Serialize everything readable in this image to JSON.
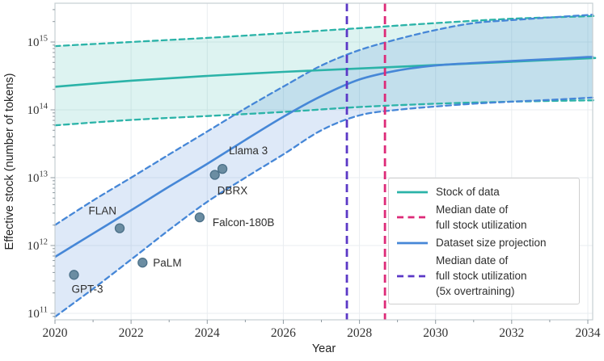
{
  "chart_data": {
    "type": "line",
    "title": "",
    "x_axis": {
      "label": "Year",
      "min": 2020,
      "max": 2034.13,
      "major_ticks": [
        2020,
        2022,
        2024,
        2026,
        2028,
        2030,
        2032,
        2034
      ],
      "minor_ticks": [
        2021,
        2023,
        2025,
        2027,
        2029,
        2031,
        2033
      ]
    },
    "y_axis": {
      "label": "Effective stock (number of tokens)",
      "scale": "log",
      "tick_base": "10",
      "tick_exponents": [
        11,
        12,
        13,
        14,
        15
      ],
      "min": 80000000000.0,
      "max": 3700000000000000.0
    },
    "grid": "major",
    "colors": {
      "teal": "#2bb3a8",
      "blue": "#4687d7",
      "pink": "#dd2a78",
      "purple": "#5b38c6",
      "teal_fill": "rgba(43,179,168,0.16)",
      "blue_fill": "rgba(91,144,220,0.20)",
      "point_fill": "#6b8da2",
      "point_edge": "#4b7088"
    },
    "series": [
      {
        "id": "stock_median",
        "name": "Stock of data",
        "style": "solid",
        "color_key": "teal",
        "points": [
          [
            2020,
            219000000000000.0
          ],
          [
            2022,
            269000000000000.0
          ],
          [
            2024,
            316000000000000.0
          ],
          [
            2026,
            363000000000000.0
          ],
          [
            2028,
            407000000000000.0
          ],
          [
            2030,
            457000000000000.0
          ],
          [
            2032,
            513000000000000.0
          ],
          [
            2034,
            575000000000000.0
          ]
        ]
      },
      {
        "id": "stock_upper",
        "name": "Stock of data (CI upper)",
        "style": "dashed",
        "color_key": "teal",
        "points": [
          [
            2020,
            870000000000000.0
          ],
          [
            2022,
            1000000000000000.0
          ],
          [
            2024,
            1150000000000000.0
          ],
          [
            2026,
            1350000000000000.0
          ],
          [
            2028,
            1600000000000000.0
          ],
          [
            2030,
            1900000000000000.0
          ],
          [
            2032,
            2200000000000000.0
          ],
          [
            2034,
            2400000000000000.0
          ]
        ]
      },
      {
        "id": "stock_lower",
        "name": "Stock of data (CI lower)",
        "style": "dashed",
        "color_key": "teal",
        "points": [
          [
            2020,
            59000000000000.0
          ],
          [
            2022,
            71000000000000.0
          ],
          [
            2024,
            81000000000000.0
          ],
          [
            2026,
            93000000000000.0
          ],
          [
            2028,
            110000000000000.0
          ],
          [
            2030,
            123000000000000.0
          ],
          [
            2032,
            132000000000000.0
          ],
          [
            2034,
            138000000000000.0
          ]
        ]
      },
      {
        "id": "dataset_median",
        "name": "Dataset size projection",
        "style": "solid",
        "color_key": "blue",
        "points": [
          [
            2020,
            680000000000.0
          ],
          [
            2021,
            1500000000000.0
          ],
          [
            2022,
            3300000000000.0
          ],
          [
            2023,
            7400000000000.0
          ],
          [
            2024,
            16000000000000.0
          ],
          [
            2025,
            36000000000000.0
          ],
          [
            2026,
            79000000000000.0
          ],
          [
            2027,
            160000000000000.0
          ],
          [
            2028,
            280000000000000.0
          ],
          [
            2029,
            380000000000000.0
          ],
          [
            2030,
            450000000000000.0
          ],
          [
            2031,
            490000000000000.0
          ],
          [
            2032,
            525000000000000.0
          ],
          [
            2033,
            560000000000000.0
          ],
          [
            2034,
            600000000000000.0
          ]
        ]
      },
      {
        "id": "dataset_upper",
        "name": "Dataset size projection (CI upper)",
        "style": "dashed",
        "color_key": "blue",
        "points": [
          [
            2020,
            2000000000000.0
          ],
          [
            2021,
            4600000000000.0
          ],
          [
            2022,
            10000000000000.0
          ],
          [
            2023,
            22000000000000.0
          ],
          [
            2024,
            48000000000000.0
          ],
          [
            2025,
            105000000000000.0
          ],
          [
            2026,
            220000000000000.0
          ],
          [
            2027,
            450000000000000.0
          ],
          [
            2028,
            760000000000000.0
          ],
          [
            2029,
            1100000000000000.0
          ],
          [
            2030,
            1500000000000000.0
          ],
          [
            2031,
            1900000000000000.0
          ],
          [
            2032,
            2100000000000000.0
          ],
          [
            2033,
            2300000000000000.0
          ],
          [
            2034,
            2500000000000000.0
          ]
        ]
      },
      {
        "id": "dataset_lower",
        "name": "Dataset size projection (CI lower)",
        "style": "dashed",
        "color_key": "blue",
        "points": [
          [
            2020,
            89000000000.0
          ],
          [
            2021,
            230000000000.0
          ],
          [
            2022,
            620000000000.0
          ],
          [
            2023,
            1700000000000.0
          ],
          [
            2024,
            4400000000000.0
          ],
          [
            2025,
            10000000000000.0
          ],
          [
            2026,
            22000000000000.0
          ],
          [
            2027,
            50000000000000.0
          ],
          [
            2028,
            83000000000000.0
          ],
          [
            2029,
            100000000000000.0
          ],
          [
            2030,
            112000000000000.0
          ],
          [
            2031,
            123000000000000.0
          ],
          [
            2032,
            132000000000000.0
          ],
          [
            2033,
            140000000000000.0
          ],
          [
            2034,
            150000000000000.0
          ]
        ]
      }
    ],
    "bands": [
      {
        "upper": "stock_upper",
        "lower": "stock_lower",
        "fill_key": "teal_fill"
      },
      {
        "upper": "dataset_upper",
        "lower": "dataset_lower",
        "fill_key": "blue_fill"
      }
    ],
    "vlines": [
      {
        "id": "overtraining_median",
        "year": 2027.67,
        "color_key": "purple",
        "label": "Median date of\nfull stock utilization\n(5x overtraining)"
      },
      {
        "id": "full_utilization_median",
        "year": 2028.67,
        "color_key": "pink",
        "label": "Median date of\nfull stock utilization"
      }
    ],
    "scatter": [
      {
        "label": "GPT-3",
        "year": 2020.5,
        "tokens": 370000000000.0,
        "label_anchor": "start",
        "label_dx": -3,
        "label_dy": 22
      },
      {
        "label": "FLAN",
        "year": 2021.7,
        "tokens": 1800000000000.0,
        "label_anchor": "end",
        "label_dx": -4,
        "label_dy": -17
      },
      {
        "label": "PaLM",
        "year": 2022.3,
        "tokens": 560000000000.0,
        "label_anchor": "start",
        "label_dx": 13,
        "label_dy": 5
      },
      {
        "label": "Falcon-180B",
        "year": 2023.8,
        "tokens": 2600000000000.0,
        "label_anchor": "start",
        "label_dx": 16,
        "label_dy": 11
      },
      {
        "label": "DBRX",
        "year": 2024.2,
        "tokens": 11000000000000.0,
        "label_anchor": "start",
        "label_dx": 3,
        "label_dy": 24
      },
      {
        "label": "Llama 3",
        "year": 2024.4,
        "tokens": 13500000000000.0,
        "label_anchor": "start",
        "label_dx": 8,
        "label_dy": -18
      }
    ],
    "legend": {
      "position": "lower right",
      "entries": [
        {
          "label": "Stock of data",
          "color_key": "teal",
          "line": "solid"
        },
        {
          "label": "Median date of\nfull stock utilization",
          "color_key": "pink",
          "line": "dashed"
        },
        {
          "label": "Dataset size projection",
          "color_key": "blue",
          "line": "solid"
        },
        {
          "label": "Median date of\nfull stock utilization\n(5x overtraining)",
          "color_key": "purple",
          "line": "dashed"
        }
      ]
    }
  }
}
